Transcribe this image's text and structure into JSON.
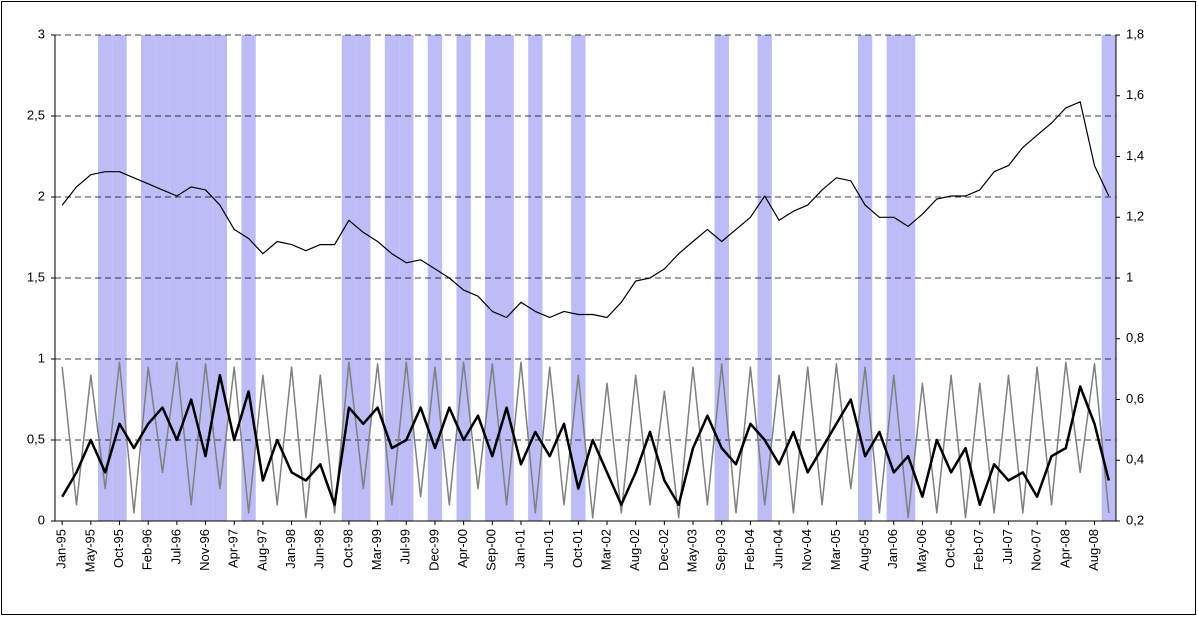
{
  "chart_data": {
    "type": "line",
    "categories": [
      "Jan-95",
      null,
      "May-95",
      null,
      "Oct-95",
      null,
      "Feb-96",
      null,
      "Jul-96",
      null,
      "Nov-96",
      null,
      "Apr-97",
      null,
      "Aug-97",
      null,
      "Jan-98",
      null,
      "Jun-98",
      null,
      "Oct-98",
      null,
      "Mar-99",
      null,
      "Jul-99",
      null,
      "Dec-99",
      null,
      "Apr-00",
      null,
      "Sep-00",
      null,
      "Jan-01",
      null,
      "Jun-01",
      null,
      "Oct-01",
      null,
      "Mar-02",
      null,
      "Aug-02",
      null,
      "Dec-02",
      null,
      "May-03",
      null,
      "Sep-03",
      null,
      "Feb-04",
      null,
      "Jun-04",
      null,
      "Nov-04",
      null,
      "Mar-05",
      null,
      "Aug-05",
      null,
      "Jan-06",
      null,
      "May-06",
      null,
      "Oct-06",
      null,
      "Feb-07",
      null,
      "Jul-07",
      null,
      "Nov-07",
      null,
      "Apr-08",
      null,
      "Aug-08",
      null
    ],
    "series": [
      {
        "style": "band",
        "color": "#bcbcf6",
        "values": [
          0,
          0,
          0,
          1,
          1,
          0,
          1,
          1,
          1,
          1,
          1,
          1,
          0,
          1,
          0,
          0,
          0,
          0,
          0,
          0,
          1,
          1,
          0,
          1,
          1,
          0,
          1,
          0,
          1,
          0,
          1,
          1,
          0,
          1,
          0,
          0,
          1,
          0,
          0,
          0,
          0,
          0,
          0,
          0,
          0,
          0,
          1,
          0,
          0,
          1,
          0,
          0,
          0,
          0,
          0,
          0,
          1,
          0,
          1,
          1,
          0,
          0,
          0,
          0,
          0,
          0,
          0,
          0,
          0,
          0,
          0,
          0,
          0,
          1
        ]
      },
      {
        "style": "line",
        "color": "#808080",
        "width": 1.5,
        "values": [
          0.95,
          0.1,
          0.9,
          0.2,
          0.98,
          0.05,
          0.95,
          0.3,
          0.98,
          0.1,
          0.97,
          0.2,
          0.95,
          0.05,
          0.9,
          0.1,
          0.95,
          0.02,
          0.9,
          0.05,
          0.98,
          0.2,
          0.97,
          0.1,
          0.98,
          0.15,
          0.95,
          0.1,
          0.98,
          0.2,
          0.97,
          0.1,
          0.98,
          0.05,
          0.95,
          0.1,
          0.9,
          0.02,
          0.85,
          0.05,
          0.9,
          0.1,
          0.8,
          0.02,
          0.95,
          0.1,
          0.97,
          0.05,
          0.95,
          0.1,
          0.9,
          0.05,
          0.95,
          0.1,
          0.97,
          0.2,
          0.95,
          0.05,
          0.9,
          0.02,
          0.85,
          0.05,
          0.9,
          0.02,
          0.85,
          0.05,
          0.9,
          0.05,
          0.95,
          0.1,
          0.98,
          0.3,
          0.97,
          0.05
        ]
      },
      {
        "style": "line",
        "color": "#000000",
        "width": 2.5,
        "values": [
          0.15,
          0.3,
          0.5,
          0.3,
          0.6,
          0.45,
          0.6,
          0.7,
          0.5,
          0.75,
          0.4,
          0.9,
          0.5,
          0.8,
          0.25,
          0.5,
          0.3,
          0.25,
          0.35,
          0.1,
          0.7,
          0.6,
          0.7,
          0.45,
          0.5,
          0.7,
          0.45,
          0.7,
          0.5,
          0.65,
          0.4,
          0.7,
          0.35,
          0.55,
          0.4,
          0.6,
          0.2,
          0.5,
          0.3,
          0.1,
          0.3,
          0.55,
          0.25,
          0.1,
          0.45,
          0.65,
          0.45,
          0.35,
          0.6,
          0.5,
          0.35,
          0.55,
          0.3,
          0.45,
          0.6,
          0.75,
          0.4,
          0.55,
          0.3,
          0.4,
          0.15,
          0.5,
          0.3,
          0.45,
          0.1,
          0.35,
          0.25,
          0.3,
          0.15,
          0.4,
          0.45,
          0.83,
          0.6,
          0.25
        ]
      },
      {
        "style": "line",
        "axis": "y2",
        "color": "#000000",
        "width": 1.2,
        "values": [
          1.24,
          1.3,
          1.34,
          1.35,
          1.35,
          1.33,
          1.31,
          1.29,
          1.27,
          1.3,
          1.29,
          1.24,
          1.16,
          1.13,
          1.08,
          1.12,
          1.11,
          1.09,
          1.11,
          1.11,
          1.19,
          1.15,
          1.12,
          1.08,
          1.05,
          1.06,
          1.03,
          1.0,
          0.96,
          0.94,
          0.89,
          0.87,
          0.92,
          0.89,
          0.87,
          0.89,
          0.88,
          0.88,
          0.87,
          0.92,
          0.99,
          1.0,
          1.03,
          1.08,
          1.12,
          1.16,
          1.12,
          1.16,
          1.2,
          1.27,
          1.19,
          1.22,
          1.24,
          1.29,
          1.33,
          1.32,
          1.24,
          1.2,
          1.2,
          1.17,
          1.21,
          1.26,
          1.27,
          1.27,
          1.29,
          1.35,
          1.37,
          1.43,
          1.47,
          1.51,
          1.56,
          1.58,
          1.37,
          1.27
        ]
      }
    ],
    "ylim": [
      0,
      3
    ],
    "yticks": [
      0,
      {
        "value": 0.5,
        "label": "0,5"
      },
      1,
      {
        "value": 1.5,
        "label": "1,5"
      },
      2,
      {
        "value": 2.5,
        "label": "2,5"
      },
      3
    ],
    "y2lim": [
      0.2,
      1.8
    ],
    "y2ticks": [
      {
        "value": 0.2,
        "label": "0,2"
      },
      {
        "value": 0.4,
        "label": "0,4"
      },
      {
        "value": 0.6,
        "label": "0,6"
      },
      {
        "value": 0.8,
        "label": "0,8"
      },
      1,
      {
        "value": 1.2,
        "label": "1,2"
      },
      {
        "value": 1.4,
        "label": "1,4"
      },
      {
        "value": 1.6,
        "label": "1,6"
      },
      {
        "value": 1.8,
        "label": "1,8"
      }
    ],
    "grid": true
  }
}
